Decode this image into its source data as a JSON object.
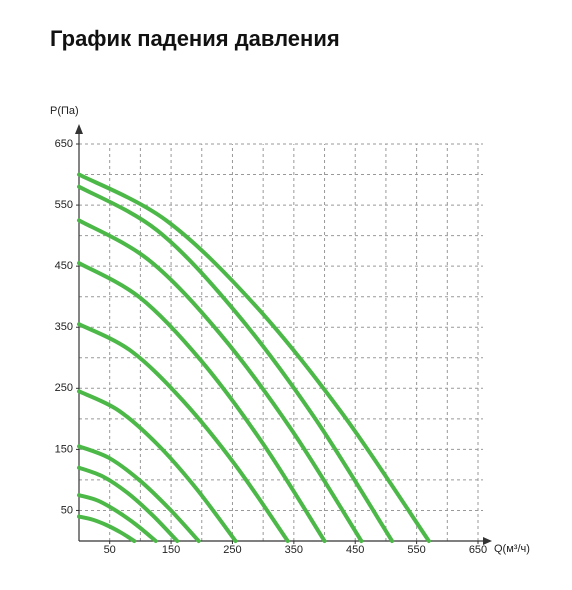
{
  "chart_data": {
    "type": "line",
    "title": "График падения давления",
    "ylabel": "P(Па)",
    "xlabel": "Q(м³/ч)",
    "xlim": [
      0,
      650
    ],
    "ylim": [
      0,
      650
    ],
    "xticks": [
      50,
      150,
      250,
      350,
      450,
      550,
      650
    ],
    "yticks": [
      50,
      150,
      250,
      350,
      450,
      550,
      650
    ],
    "xgrid": [
      50,
      100,
      150,
      200,
      250,
      300,
      350,
      400,
      450,
      500,
      550,
      600,
      650
    ],
    "ygrid": [
      50,
      100,
      150,
      200,
      250,
      300,
      350,
      400,
      450,
      500,
      550,
      600,
      650
    ],
    "grid": true,
    "series": [
      {
        "color": "#4cb848",
        "x": [
          0,
          142,
          285,
          428,
          570
        ],
        "values": [
          600,
          525,
          388,
          210,
          0
        ]
      },
      {
        "color": "#4cb848",
        "x": [
          0,
          128,
          255,
          383,
          510
        ],
        "values": [
          580,
          508,
          375,
          203,
          0
        ]
      },
      {
        "color": "#4cb848",
        "x": [
          0,
          115,
          230,
          345,
          460
        ],
        "values": [
          525,
          459,
          339,
          184,
          0
        ]
      },
      {
        "color": "#4cb848",
        "x": [
          0,
          100,
          200,
          300,
          400
        ],
        "values": [
          455,
          398,
          294,
          159,
          0
        ]
      },
      {
        "color": "#4cb848",
        "x": [
          0,
          85,
          170,
          255,
          340
        ],
        "values": [
          355,
          311,
          229,
          124,
          0
        ]
      },
      {
        "color": "#4cb848",
        "x": [
          0,
          64,
          128,
          191,
          255
        ],
        "values": [
          245,
          214,
          158,
          86,
          0
        ]
      },
      {
        "color": "#4cb848",
        "x": [
          0,
          49,
          98,
          146,
          195
        ],
        "values": [
          155,
          136,
          100,
          54,
          0
        ]
      },
      {
        "color": "#4cb848",
        "x": [
          0,
          40,
          80,
          120,
          160
        ],
        "values": [
          120,
          105,
          78,
          42,
          0
        ]
      },
      {
        "color": "#4cb848",
        "x": [
          0,
          31,
          63,
          94,
          125
        ],
        "values": [
          75,
          66,
          48,
          26,
          0
        ]
      },
      {
        "color": "#4cb848",
        "x": [
          0,
          22,
          45,
          68,
          90
        ],
        "values": [
          40,
          35,
          26,
          14,
          0
        ]
      }
    ]
  }
}
